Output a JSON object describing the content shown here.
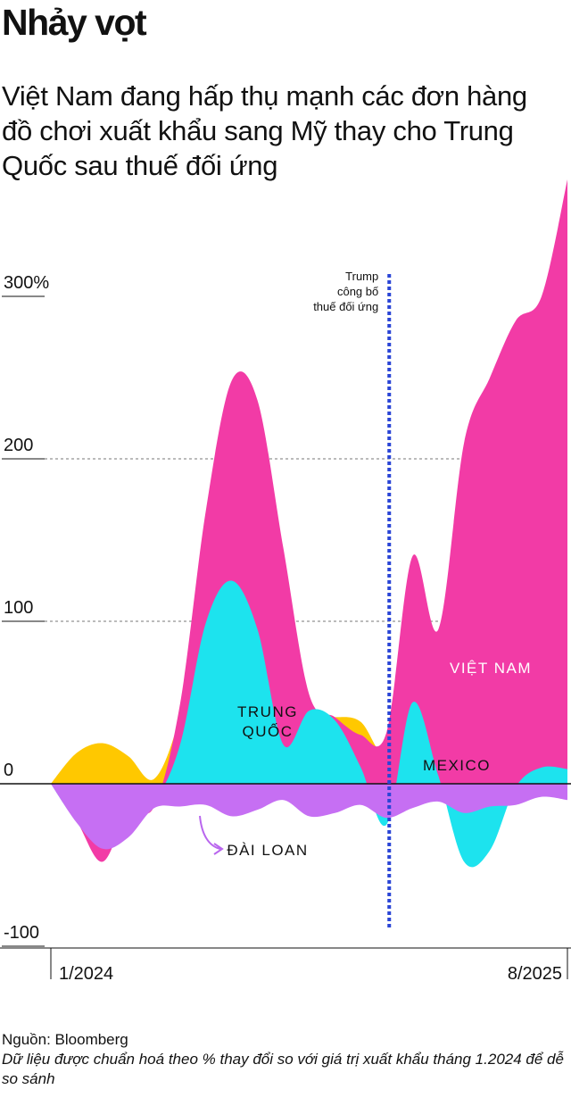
{
  "header": {
    "title": "Nhảy vọt",
    "subtitle": "Việt Nam đang hấp thụ mạnh các đơn hàng đồ chơi xuất khẩu sang Mỹ thay cho Trung Quốc sau thuế đối ứng"
  },
  "chart_data": {
    "type": "area",
    "title": "Nhảy vọt",
    "xlabel": "",
    "ylabel": "% thay đổi so với tháng 1.2024",
    "ylim": [
      -100,
      300
    ],
    "y_ticks": [
      {
        "value": 300,
        "label": "300%"
      },
      {
        "value": 200,
        "label": "200"
      },
      {
        "value": 100,
        "label": "100"
      },
      {
        "value": 0,
        "label": "0"
      },
      {
        "value": -100,
        "label": "-100"
      }
    ],
    "x_tick_labels": [
      {
        "label": "1/2024",
        "position": "start"
      },
      {
        "label": "8/2025",
        "position": "end"
      }
    ],
    "series": [
      {
        "name": "Trung Quốc",
        "label": "TRUNG QUỐC",
        "color": "#1de3ee",
        "values": [
          0,
          -22,
          -24,
          -19,
          -11,
          24,
          99,
          125,
          95,
          24,
          45,
          39,
          10,
          -25,
          50,
          5,
          -48,
          -41,
          -2,
          10,
          9
        ]
      },
      {
        "name": "Mexico",
        "label": "MEXICO",
        "color": "#ffc800",
        "values": [
          0,
          19,
          25,
          17,
          3,
          42,
          120,
          150,
          118,
          46,
          39,
          41,
          38,
          16,
          40,
          24,
          41,
          16,
          34,
          45,
          58
        ]
      },
      {
        "name": "Việt Nam",
        "label": "VIỆT NAM",
        "color": "#f23ba6",
        "values": [
          0,
          -23,
          -48,
          -17,
          -14,
          49,
          168,
          248,
          236,
          145,
          55,
          41,
          30,
          32,
          140,
          95,
          210,
          250,
          285,
          300,
          372
        ]
      },
      {
        "name": "Đài Loan",
        "label": "ĐÀI LOAN",
        "color": "#c66ff3",
        "values": [
          0,
          -24,
          -40,
          -33,
          -15,
          -14,
          -13,
          -20,
          -16,
          -10,
          -20,
          -18,
          -13,
          -21,
          -15,
          -11,
          -18,
          -14,
          -13,
          -8,
          -10
        ]
      }
    ],
    "annotation": {
      "text": [
        "Trump",
        "công bố",
        "thuế đối ứng"
      ],
      "x_index": 13.1
    },
    "grid": true,
    "legend": "inline"
  },
  "footer": {
    "source": "Nguồn: Bloomberg",
    "note": "Dữ liệu được chuẩn hoá theo % thay đổi so với giá trị xuất khẩu tháng 1.2024 để dễ so sánh"
  }
}
